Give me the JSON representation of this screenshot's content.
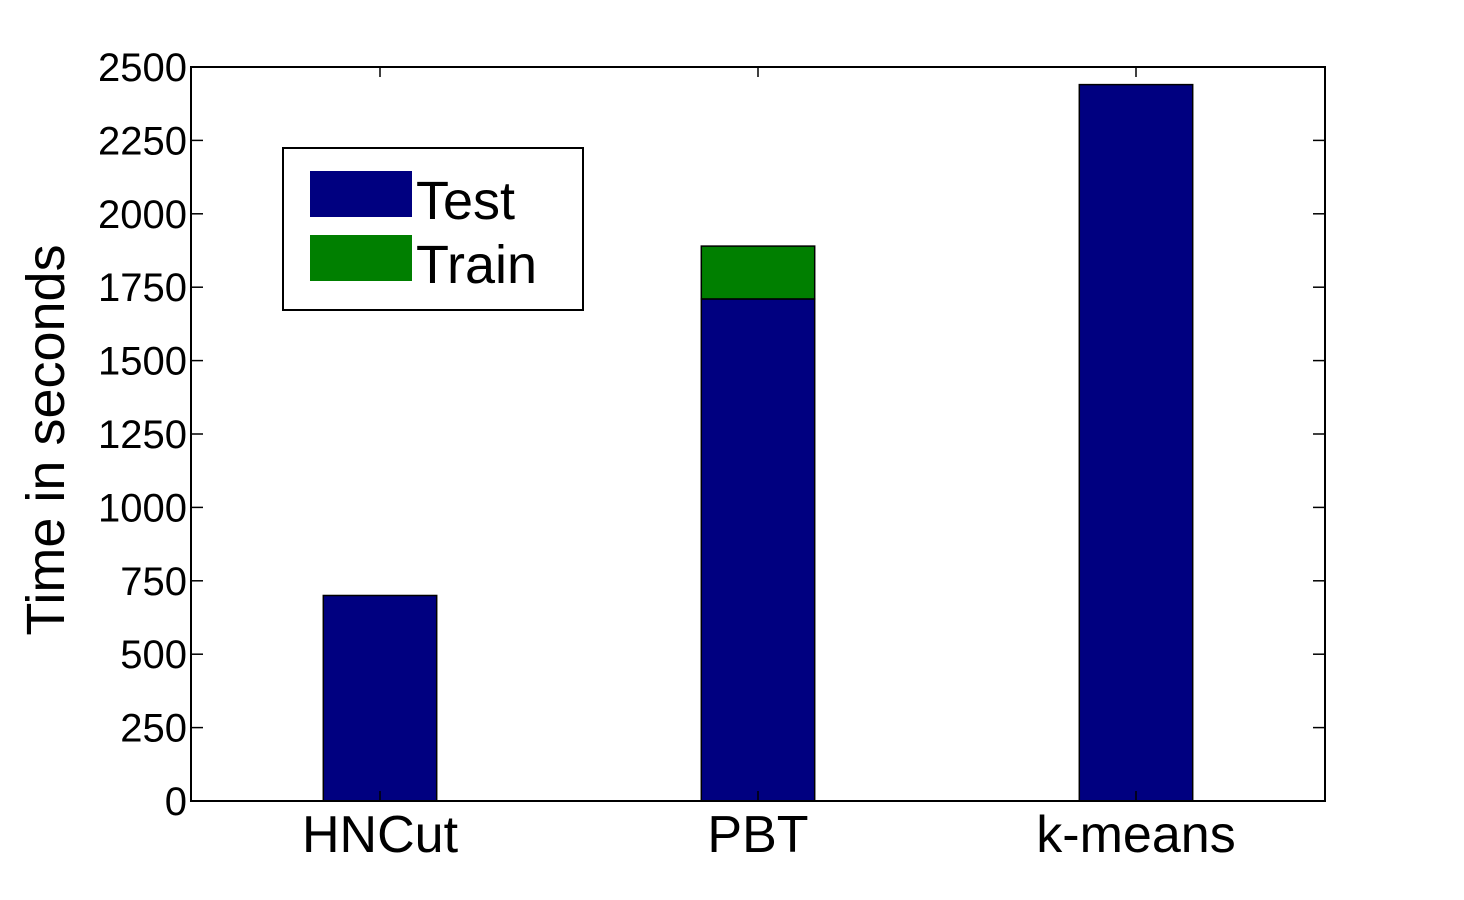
{
  "chart_data": {
    "type": "bar",
    "stacked": true,
    "categories": [
      "HNCut",
      "PBT",
      "k-means"
    ],
    "series": [
      {
        "name": "Test",
        "values": [
          700,
          1710,
          2440
        ],
        "color": "#000080"
      },
      {
        "name": "Train",
        "values": [
          0,
          180,
          0
        ],
        "color": "#007F00"
      }
    ],
    "title": "",
    "xlabel": "",
    "ylabel": "Time in seconds",
    "ylim": [
      0,
      2500
    ],
    "yticks": [
      0,
      250,
      500,
      750,
      1000,
      1250,
      1500,
      1750,
      2000,
      2250,
      2500
    ],
    "grid": false,
    "legend_position": "top-left"
  }
}
